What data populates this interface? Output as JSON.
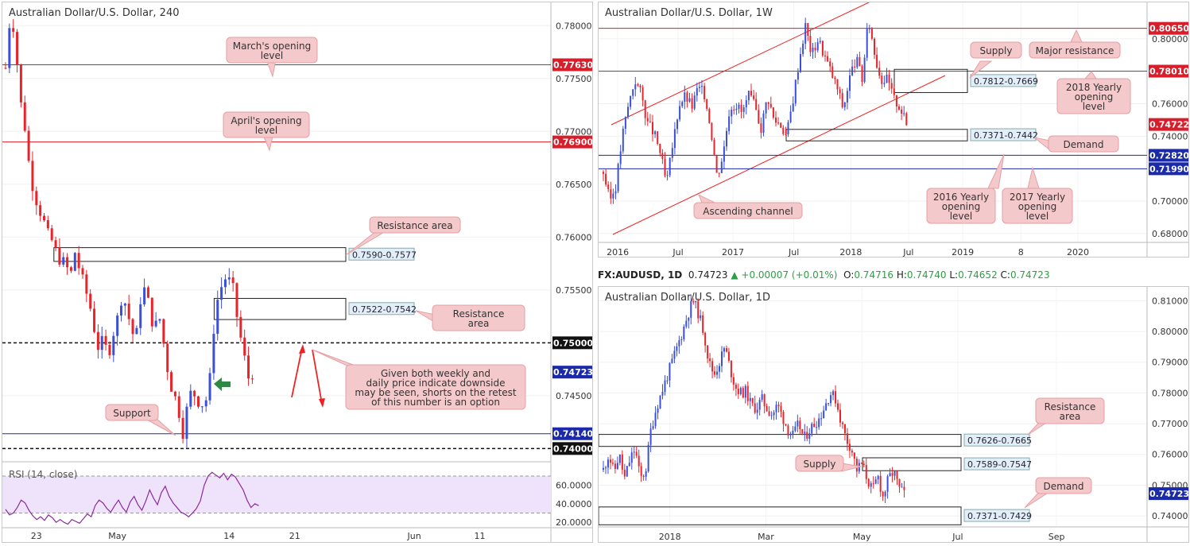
{
  "colors": {
    "bull": "#3b4fd8",
    "bear": "#e8242a",
    "level": "#d81e2a",
    "blue_level": "#1b2aa8",
    "callout_bg": "#f4c9cb",
    "callout_border": "#e6a0a4",
    "zone_label_bg": "#e2eef8",
    "rsi_line": "#8a2c9c",
    "rsi_band": "#efe3fb",
    "arrow_green": "#2f8a45"
  },
  "headline": {
    "symbol": "FX:AUDUSD, 1D",
    "price": "0.74723",
    "change": "▲ +0.00007 (+0.01%)",
    "o_label": "O:",
    "o": "0.74716",
    "h_label": "H:",
    "h": "0.74740",
    "l_label": "L:",
    "l": "0.74652",
    "c_label": "C:",
    "c": "0.74723"
  },
  "chart_data": [
    {
      "id": "h4",
      "type": "candlestick",
      "title": "Australian Dollar/U.S. Dollar, 240",
      "ylim": [
        0.7395,
        0.7822
      ],
      "y_ticks": [
        "0.78000",
        "0.77500",
        "0.77000",
        "0.76500",
        "0.76000",
        "0.75500",
        "0.75000",
        "0.74500"
      ],
      "y_tick_values": [
        0.78,
        0.775,
        0.77,
        0.765,
        0.76,
        0.755,
        0.75,
        0.745
      ],
      "x_ticks": [
        "23",
        "May",
        "14",
        "21",
        "Jun",
        "11"
      ],
      "x_tick_index": [
        8,
        29,
        58,
        75,
        106,
        123
      ],
      "n_slots": 140,
      "close_path": [
        0.776,
        0.781,
        0.7795,
        0.7732,
        0.771,
        0.767,
        0.7645,
        0.763,
        0.7618,
        0.7602,
        0.7596,
        0.7583,
        0.7578,
        0.7572,
        0.7564,
        0.7588,
        0.7566,
        0.7552,
        0.7538,
        0.7515,
        0.7494,
        0.7502,
        0.7488,
        0.7508,
        0.7522,
        0.7546,
        0.7534,
        0.7512,
        0.7502,
        0.7542,
        0.7552,
        0.753,
        0.7512,
        0.7526,
        0.7498,
        0.747,
        0.7452,
        0.7442,
        0.7414,
        0.7438,
        0.7456,
        0.7448,
        0.7442,
        0.7445,
        0.7468,
        0.7532,
        0.7548,
        0.7562,
        0.7558,
        0.7548,
        0.7515,
        0.7494,
        0.7466,
        0.7472
      ],
      "levels": [
        {
          "label": "0.77630",
          "value": 0.7763,
          "style": "red"
        },
        {
          "label": "0.76900",
          "value": 0.769,
          "style": "red"
        },
        {
          "label": "0.75000",
          "value": 0.75,
          "style": "dash"
        },
        {
          "label": "0.74723",
          "value": 0.74723,
          "style": "price"
        },
        {
          "label": "0.74140",
          "value": 0.7414,
          "style": "blue"
        },
        {
          "label": "0.74000",
          "value": 0.74,
          "style": "dash"
        }
      ],
      "zones": [
        {
          "label": "0.7590-0.7577",
          "high": 0.759,
          "low": 0.7577,
          "x_from": 27
        },
        {
          "label": "0.7522-0.7542",
          "high": 0.7542,
          "low": 0.7522,
          "x_from": 111
        }
      ],
      "callouts": [
        {
          "lines": [
            "March's opening",
            "level"
          ]
        },
        {
          "lines": [
            "April's opening",
            "level"
          ]
        },
        {
          "lines": [
            "Resistance area"
          ]
        },
        {
          "lines": [
            "Resistance",
            "area"
          ]
        },
        {
          "lines": [
            "Given both weekly and",
            "daily price indicate downside",
            "may be seen, shorts on the retest",
            "of this number is an option"
          ]
        },
        {
          "lines": [
            "Support"
          ]
        }
      ],
      "rsi": {
        "label": "RSI (14, close)",
        "ylim": [
          15,
          82
        ],
        "ticks": [
          "60.0000",
          "40.0000",
          "20.0000"
        ],
        "tick_values": [
          60,
          40,
          20
        ],
        "bands": [
          70,
          30
        ],
        "values": [
          34,
          28,
          30,
          36,
          44,
          41,
          33,
          27,
          23,
          26,
          22,
          28,
          25,
          20,
          23,
          20,
          18,
          23,
          21,
          19,
          24,
          29,
          26,
          38,
          44,
          41,
          35,
          31,
          38,
          44,
          36,
          31,
          42,
          48,
          39,
          33,
          43,
          55,
          46,
          39,
          52,
          59,
          48,
          41,
          36,
          31,
          29,
          26,
          30,
          35,
          43,
          60,
          70,
          74,
          71,
          68,
          73,
          66,
          72,
          69,
          62,
          55,
          44,
          36,
          40,
          38
        ]
      }
    },
    {
      "id": "w1",
      "type": "candlestick",
      "title": "Australian Dollar/U.S. Dollar, 1W",
      "ylim": [
        0.6745,
        0.8225
      ],
      "y_ticks": [
        "0.80000",
        "0.78000",
        "0.76000",
        "0.74000",
        "0.72000",
        "0.70000",
        "0.68000"
      ],
      "y_tick_values": [
        0.8,
        0.78,
        0.76,
        0.74,
        0.72,
        0.7,
        0.68
      ],
      "x_ticks": [
        "2016",
        "Jul",
        "2017",
        "Jul",
        "2018",
        "Jul",
        "2019",
        "8",
        "2020"
      ],
      "x_tick_frac": [
        0.035,
        0.145,
        0.245,
        0.356,
        0.46,
        0.565,
        0.664,
        0.77,
        0.874
      ],
      "levels": [
        {
          "label": "0.80650",
          "value": 0.8065,
          "style": "red"
        },
        {
          "label": "0.78010",
          "value": 0.7801,
          "style": "red"
        },
        {
          "label": "0.74722",
          "value": 0.74722,
          "style": "price"
        },
        {
          "label": "0.72820",
          "value": 0.7282,
          "style": "blue"
        },
        {
          "label": "0.71990",
          "value": 0.7199,
          "style": "blue"
        }
      ],
      "zones": [
        {
          "label": "0.7812-0.7669",
          "high": 0.7812,
          "low": 0.7669
        },
        {
          "label": "0.7371-0.7442",
          "high": 0.7442,
          "low": 0.7371
        }
      ],
      "callouts": [
        {
          "lines": [
            "Supply"
          ]
        },
        {
          "lines": [
            "Major resistance"
          ]
        },
        {
          "lines": [
            "2018 Yearly",
            "opening",
            "level"
          ]
        },
        {
          "lines": [
            "Demand"
          ]
        },
        {
          "lines": [
            "2016 Yearly",
            "opening",
            "level"
          ]
        },
        {
          "lines": [
            "2017 Yearly",
            "opening",
            "level"
          ]
        },
        {
          "lines": [
            "Ascending channel"
          ]
        }
      ],
      "close_path": [
        0.718,
        0.7,
        0.71,
        0.74,
        0.76,
        0.775,
        0.766,
        0.748,
        0.742,
        0.73,
        0.71,
        0.735,
        0.76,
        0.765,
        0.758,
        0.77,
        0.766,
        0.746,
        0.715,
        0.73,
        0.758,
        0.76,
        0.754,
        0.765,
        0.758,
        0.745,
        0.765,
        0.75,
        0.748,
        0.74,
        0.762,
        0.787,
        0.808,
        0.79,
        0.8,
        0.79,
        0.78,
        0.77,
        0.757,
        0.776,
        0.788,
        0.775,
        0.812,
        0.79,
        0.775,
        0.775,
        0.763,
        0.758,
        0.747
      ]
    },
    {
      "id": "d1",
      "type": "candlestick",
      "title": "Australian Dollar/U.S. Dollar, 1D",
      "ylim": [
        0.7364,
        0.8145
      ],
      "y_ticks": [
        "0.81000",
        "0.80000",
        "0.79000",
        "0.78000",
        "0.77000",
        "0.76000",
        "0.75000",
        "0.74000"
      ],
      "y_tick_values": [
        0.81,
        0.8,
        0.79,
        0.78,
        0.77,
        0.76,
        0.75,
        0.74
      ],
      "x_ticks": [
        "2018",
        "Mar",
        "May",
        "Jul",
        "Sep"
      ],
      "x_tick_frac": [
        0.13,
        0.305,
        0.48,
        0.655,
        0.835
      ],
      "levels": [
        {
          "label": "0.74723",
          "value": 0.74723,
          "style": "price"
        }
      ],
      "zones": [
        {
          "label": "0.7626-0.7665",
          "high": 0.7665,
          "low": 0.7626
        },
        {
          "label": "0.7589-0.7547",
          "high": 0.7589,
          "low": 0.7547
        },
        {
          "label": "0.7371-0.7429",
          "high": 0.7429,
          "low": 0.7371
        }
      ],
      "callouts": [
        {
          "lines": [
            "Resistance",
            "area"
          ]
        },
        {
          "lines": [
            "Supply"
          ]
        },
        {
          "lines": [
            "Demand"
          ]
        }
      ],
      "close_path": [
        0.755,
        0.76,
        0.754,
        0.76,
        0.752,
        0.758,
        0.762,
        0.752,
        0.7545,
        0.768,
        0.775,
        0.78,
        0.785,
        0.79,
        0.795,
        0.8,
        0.8055,
        0.81,
        0.806,
        0.8,
        0.79,
        0.786,
        0.79,
        0.795,
        0.788,
        0.782,
        0.78,
        0.7805,
        0.776,
        0.775,
        0.778,
        0.775,
        0.773,
        0.776,
        0.772,
        0.768,
        0.766,
        0.77,
        0.765,
        0.768,
        0.77,
        0.772,
        0.776,
        0.78,
        0.778,
        0.771,
        0.765,
        0.762,
        0.755,
        0.757,
        0.752,
        0.748,
        0.753,
        0.746,
        0.752,
        0.7545,
        0.7488,
        0.7472
      ]
    }
  ]
}
